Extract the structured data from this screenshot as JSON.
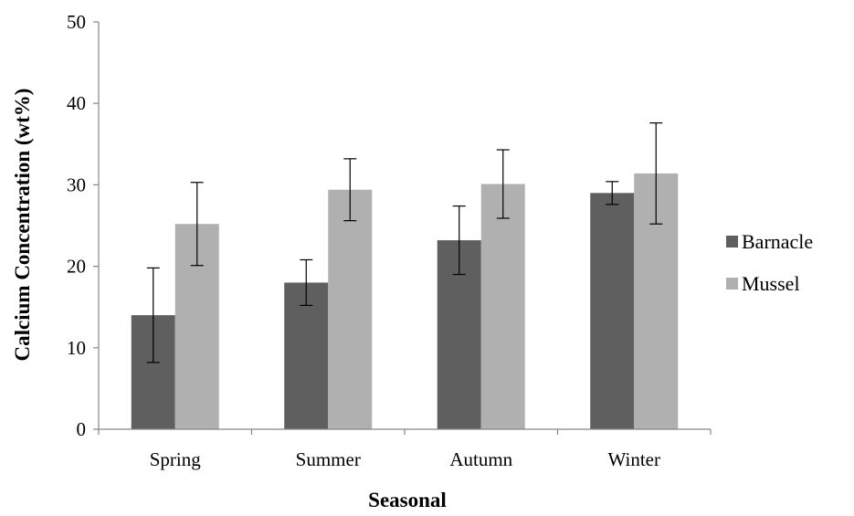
{
  "chart_data": {
    "type": "bar",
    "title": "",
    "xlabel": "Seasonal",
    "ylabel": "Calcium Concentration (wt%)",
    "categories": [
      "Spring",
      "Summer",
      "Autumn",
      "Winter"
    ],
    "ylim": [
      0,
      50
    ],
    "yticks": [
      0,
      10,
      20,
      30,
      40,
      50
    ],
    "grid": false,
    "legend_position": "right",
    "series": [
      {
        "name": "Barnacle",
        "color": "#5f5f5f",
        "values": [
          14.0,
          18.0,
          23.2,
          29.0
        ],
        "error": [
          5.8,
          2.8,
          4.2,
          1.4
        ]
      },
      {
        "name": "Mussel",
        "color": "#b0b0b0",
        "values": [
          25.2,
          29.4,
          30.1,
          31.4
        ],
        "error": [
          5.1,
          3.8,
          4.2,
          6.2
        ]
      }
    ]
  }
}
